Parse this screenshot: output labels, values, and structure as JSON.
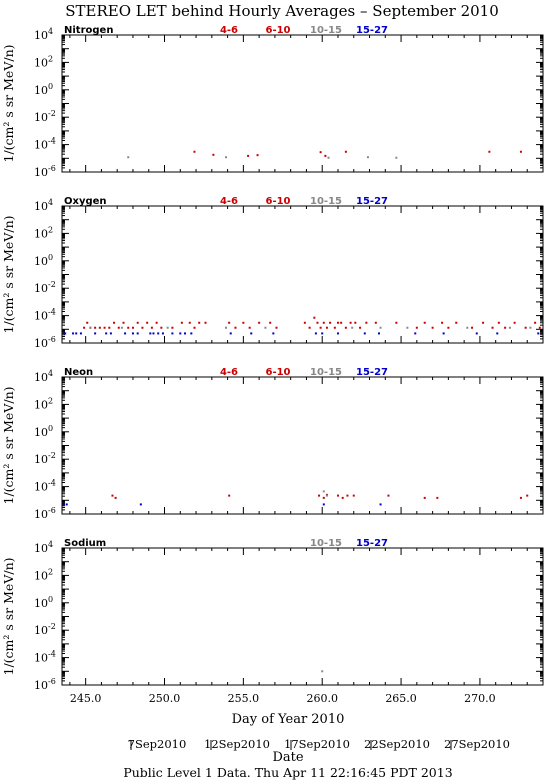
{
  "title": "STEREO LET behind Hourly Averages – September 2010",
  "ylabel": "1/(cm² s sr MeV/n)",
  "xlabel": "Day of Year 2010",
  "date_axis_label": "Date",
  "date_labels": [
    "7Sep2010",
    "12Sep2010",
    "17Sep2010",
    "22Sep2010",
    "27Sep2010"
  ],
  "footer": "Public Level 1 Data. Thu Apr 11 22:16:45 PDT 2013",
  "colors": {
    "4-6": "#cc0000",
    "6-10": "#cc0000",
    "10-15": "#888888",
    "15-27": "#0000cc"
  },
  "chart_data": [
    {
      "type": "scatter",
      "element": "Nitrogen",
      "x_range": [
        243.5,
        274
      ],
      "ylim_exp": [
        -6,
        4
      ],
      "ylog": true,
      "y_tick_exponents": [
        -6,
        -4,
        -2,
        0,
        2,
        4
      ],
      "x_ticks": [
        245,
        250,
        255,
        260,
        265,
        270
      ],
      "legend": [
        "4-6",
        "6-10",
        "10-15",
        "15-27"
      ],
      "series": [
        {
          "name": "4-6",
          "points": [
            [
              251.9,
              3e-05
            ],
            [
              253.1,
              1.8e-05
            ],
            [
              255.3,
              1.5e-05
            ],
            [
              255.9,
              1.7e-05
            ],
            [
              259.9,
              2.8e-05
            ],
            [
              260.2,
              1.5e-05
            ],
            [
              261.5,
              3e-05
            ],
            [
              270.6,
              3e-05
            ],
            [
              272.6,
              3e-05
            ]
          ]
        },
        {
          "name": "10-15",
          "points": [
            [
              247.7,
              1.2e-05
            ],
            [
              253.9,
              1.2e-05
            ],
            [
              260.4,
              1.1e-05
            ],
            [
              262.9,
              1.2e-05
            ],
            [
              264.7,
              1.1e-05
            ]
          ]
        }
      ]
    },
    {
      "type": "scatter",
      "element": "Oxygen",
      "x_range": [
        243.5,
        274
      ],
      "ylim_exp": [
        -6,
        4
      ],
      "ylog": true,
      "y_tick_exponents": [
        -6,
        -4,
        -2,
        0,
        2,
        4
      ],
      "x_ticks": [
        245,
        250,
        255,
        260,
        265,
        270
      ],
      "legend": [
        "4-6",
        "6-10",
        "10-15",
        "15-27"
      ],
      "series": [
        {
          "name": "4-6",
          "points": [
            [
              244.9,
              1.3e-05
            ],
            [
              245.1,
              3e-05
            ],
            [
              245.3,
              1.3e-05
            ],
            [
              245.6,
              1.3e-05
            ],
            [
              245.9,
              1.3e-05
            ],
            [
              246.2,
              1.3e-05
            ],
            [
              246.5,
              1.3e-05
            ],
            [
              246.8,
              3e-05
            ],
            [
              247.1,
              1.3e-05
            ],
            [
              247.4,
              3e-05
            ],
            [
              247.7,
              1.3e-05
            ],
            [
              248.0,
              1.3e-05
            ],
            [
              248.3,
              3e-05
            ],
            [
              248.6,
              1.3e-05
            ],
            [
              248.9,
              3e-05
            ],
            [
              249.2,
              1.3e-05
            ],
            [
              249.5,
              3e-05
            ],
            [
              249.8,
              1.3e-05
            ],
            [
              250.5,
              1.3e-05
            ],
            [
              251.1,
              3e-05
            ],
            [
              251.6,
              3e-05
            ],
            [
              251.9,
              1.3e-05
            ],
            [
              252.2,
              3e-05
            ],
            [
              252.6,
              3e-05
            ],
            [
              254.1,
              3e-05
            ],
            [
              254.5,
              1.3e-05
            ],
            [
              255.0,
              3e-05
            ],
            [
              255.4,
              1.3e-05
            ],
            [
              256.0,
              3e-05
            ],
            [
              256.7,
              3e-05
            ],
            [
              257.1,
              1.3e-05
            ],
            [
              258.9,
              3e-05
            ],
            [
              259.2,
              1.3e-05
            ],
            [
              259.5,
              7e-05
            ],
            [
              259.7,
              3e-05
            ],
            [
              259.9,
              1.3e-05
            ],
            [
              260.1,
              3e-05
            ],
            [
              260.3,
              1.3e-05
            ],
            [
              260.5,
              3e-05
            ],
            [
              260.8,
              1.3e-05
            ],
            [
              261.0,
              3e-05
            ],
            [
              261.2,
              3e-05
            ],
            [
              261.5,
              1.3e-05
            ],
            [
              261.8,
              3e-05
            ],
            [
              262.1,
              3e-05
            ],
            [
              262.4,
              1.3e-05
            ],
            [
              262.8,
              3e-05
            ],
            [
              263.4,
              3e-05
            ],
            [
              264.7,
              3e-05
            ],
            [
              266.0,
              1.3e-05
            ],
            [
              266.5,
              3e-05
            ],
            [
              267.0,
              1.3e-05
            ],
            [
              267.6,
              3e-05
            ],
            [
              268.0,
              1.3e-05
            ],
            [
              268.5,
              3e-05
            ],
            [
              269.5,
              1.3e-05
            ],
            [
              270.2,
              3e-05
            ],
            [
              270.8,
              1.3e-05
            ],
            [
              271.2,
              3e-05
            ],
            [
              271.6,
              1.3e-05
            ],
            [
              272.2,
              3e-05
            ],
            [
              272.9,
              1.3e-05
            ],
            [
              273.5,
              3e-05
            ],
            [
              273.8,
              1.3e-05
            ]
          ]
        },
        {
          "name": "10-15",
          "points": [
            [
              245.3,
              1.3e-05
            ],
            [
              247.3,
              1.3e-05
            ],
            [
              250.2,
              1.3e-05
            ],
            [
              253.9,
              1.3e-05
            ],
            [
              256.4,
              1.3e-05
            ],
            [
              261.9,
              1.3e-05
            ],
            [
              263.7,
              1.3e-05
            ],
            [
              265.4,
              1.3e-05
            ],
            [
              269.2,
              1.3e-05
            ],
            [
              271.9,
              1.3e-05
            ],
            [
              273.2,
              1.3e-05
            ]
          ]
        },
        {
          "name": "15-27",
          "points": [
            [
              243.7,
              5e-06
            ],
            [
              244.2,
              5e-06
            ],
            [
              244.4,
              5e-06
            ],
            [
              244.7,
              5e-06
            ],
            [
              245.6,
              5e-06
            ],
            [
              246.3,
              5e-06
            ],
            [
              246.6,
              5e-06
            ],
            [
              247.5,
              5e-06
            ],
            [
              248.0,
              5e-06
            ],
            [
              248.3,
              5e-06
            ],
            [
              249.1,
              5e-06
            ],
            [
              249.3,
              5e-06
            ],
            [
              249.6,
              5e-06
            ],
            [
              249.9,
              5e-06
            ],
            [
              250.5,
              5e-06
            ],
            [
              251.0,
              5e-06
            ],
            [
              251.3,
              5e-06
            ],
            [
              251.7,
              5e-06
            ],
            [
              254.2,
              5e-06
            ],
            [
              255.5,
              5e-06
            ],
            [
              256.9,
              5e-06
            ],
            [
              259.6,
              5e-06
            ],
            [
              260.0,
              5e-06
            ],
            [
              261.0,
              5e-06
            ],
            [
              262.7,
              5e-06
            ],
            [
              263.6,
              5e-06
            ],
            [
              265.9,
              5e-06
            ],
            [
              267.7,
              5e-06
            ],
            [
              269.8,
              5e-06
            ],
            [
              271.1,
              5e-06
            ],
            [
              273.7,
              5e-06
            ]
          ]
        }
      ]
    },
    {
      "type": "scatter",
      "element": "Neon",
      "x_range": [
        243.5,
        274
      ],
      "ylim_exp": [
        -6,
        4
      ],
      "ylog": true,
      "y_tick_exponents": [
        -6,
        -4,
        -2,
        0,
        2,
        4
      ],
      "x_ticks": [
        245,
        250,
        255,
        260,
        265,
        270
      ],
      "legend": [
        "4-6",
        "6-10",
        "10-15",
        "15-27"
      ],
      "series": [
        {
          "name": "4-6",
          "points": [
            [
              246.7,
              2.2e-05
            ],
            [
              246.9,
              1.5e-05
            ],
            [
              254.1,
              2.2e-05
            ],
            [
              259.8,
              2.2e-05
            ],
            [
              260.1,
              1.5e-05
            ],
            [
              260.3,
              2.5e-05
            ],
            [
              261.0,
              2.2e-05
            ],
            [
              261.3,
              1.5e-05
            ],
            [
              261.6,
              2.2e-05
            ],
            [
              262.0,
              2.2e-05
            ],
            [
              264.2,
              2.2e-05
            ],
            [
              266.5,
              1.5e-05
            ],
            [
              267.3,
              1.5e-05
            ],
            [
              272.6,
              1.5e-05
            ],
            [
              273.0,
              2.2e-05
            ]
          ]
        },
        {
          "name": "10-15",
          "points": [
            [
              260.1,
              4.5e-05
            ],
            [
              260.3,
              2.2e-05
            ]
          ]
        },
        {
          "name": "15-27",
          "points": [
            [
              243.6,
              5e-06
            ],
            [
              243.8,
              5e-06
            ],
            [
              248.5,
              5e-06
            ],
            [
              260.1,
              5e-06
            ],
            [
              263.7,
              5e-06
            ]
          ]
        }
      ]
    },
    {
      "type": "scatter",
      "element": "Sodium",
      "x_range": [
        243.5,
        274
      ],
      "ylim_exp": [
        -6,
        4
      ],
      "ylog": true,
      "y_tick_exponents": [
        -6,
        -4,
        -2,
        0,
        2,
        4
      ],
      "x_ticks": [
        245,
        250,
        255,
        260,
        265,
        270
      ],
      "legend": [
        "10-15",
        "15-27"
      ],
      "series": [
        {
          "name": "10-15",
          "points": [
            [
              260.0,
              1e-05
            ]
          ]
        }
      ]
    }
  ]
}
